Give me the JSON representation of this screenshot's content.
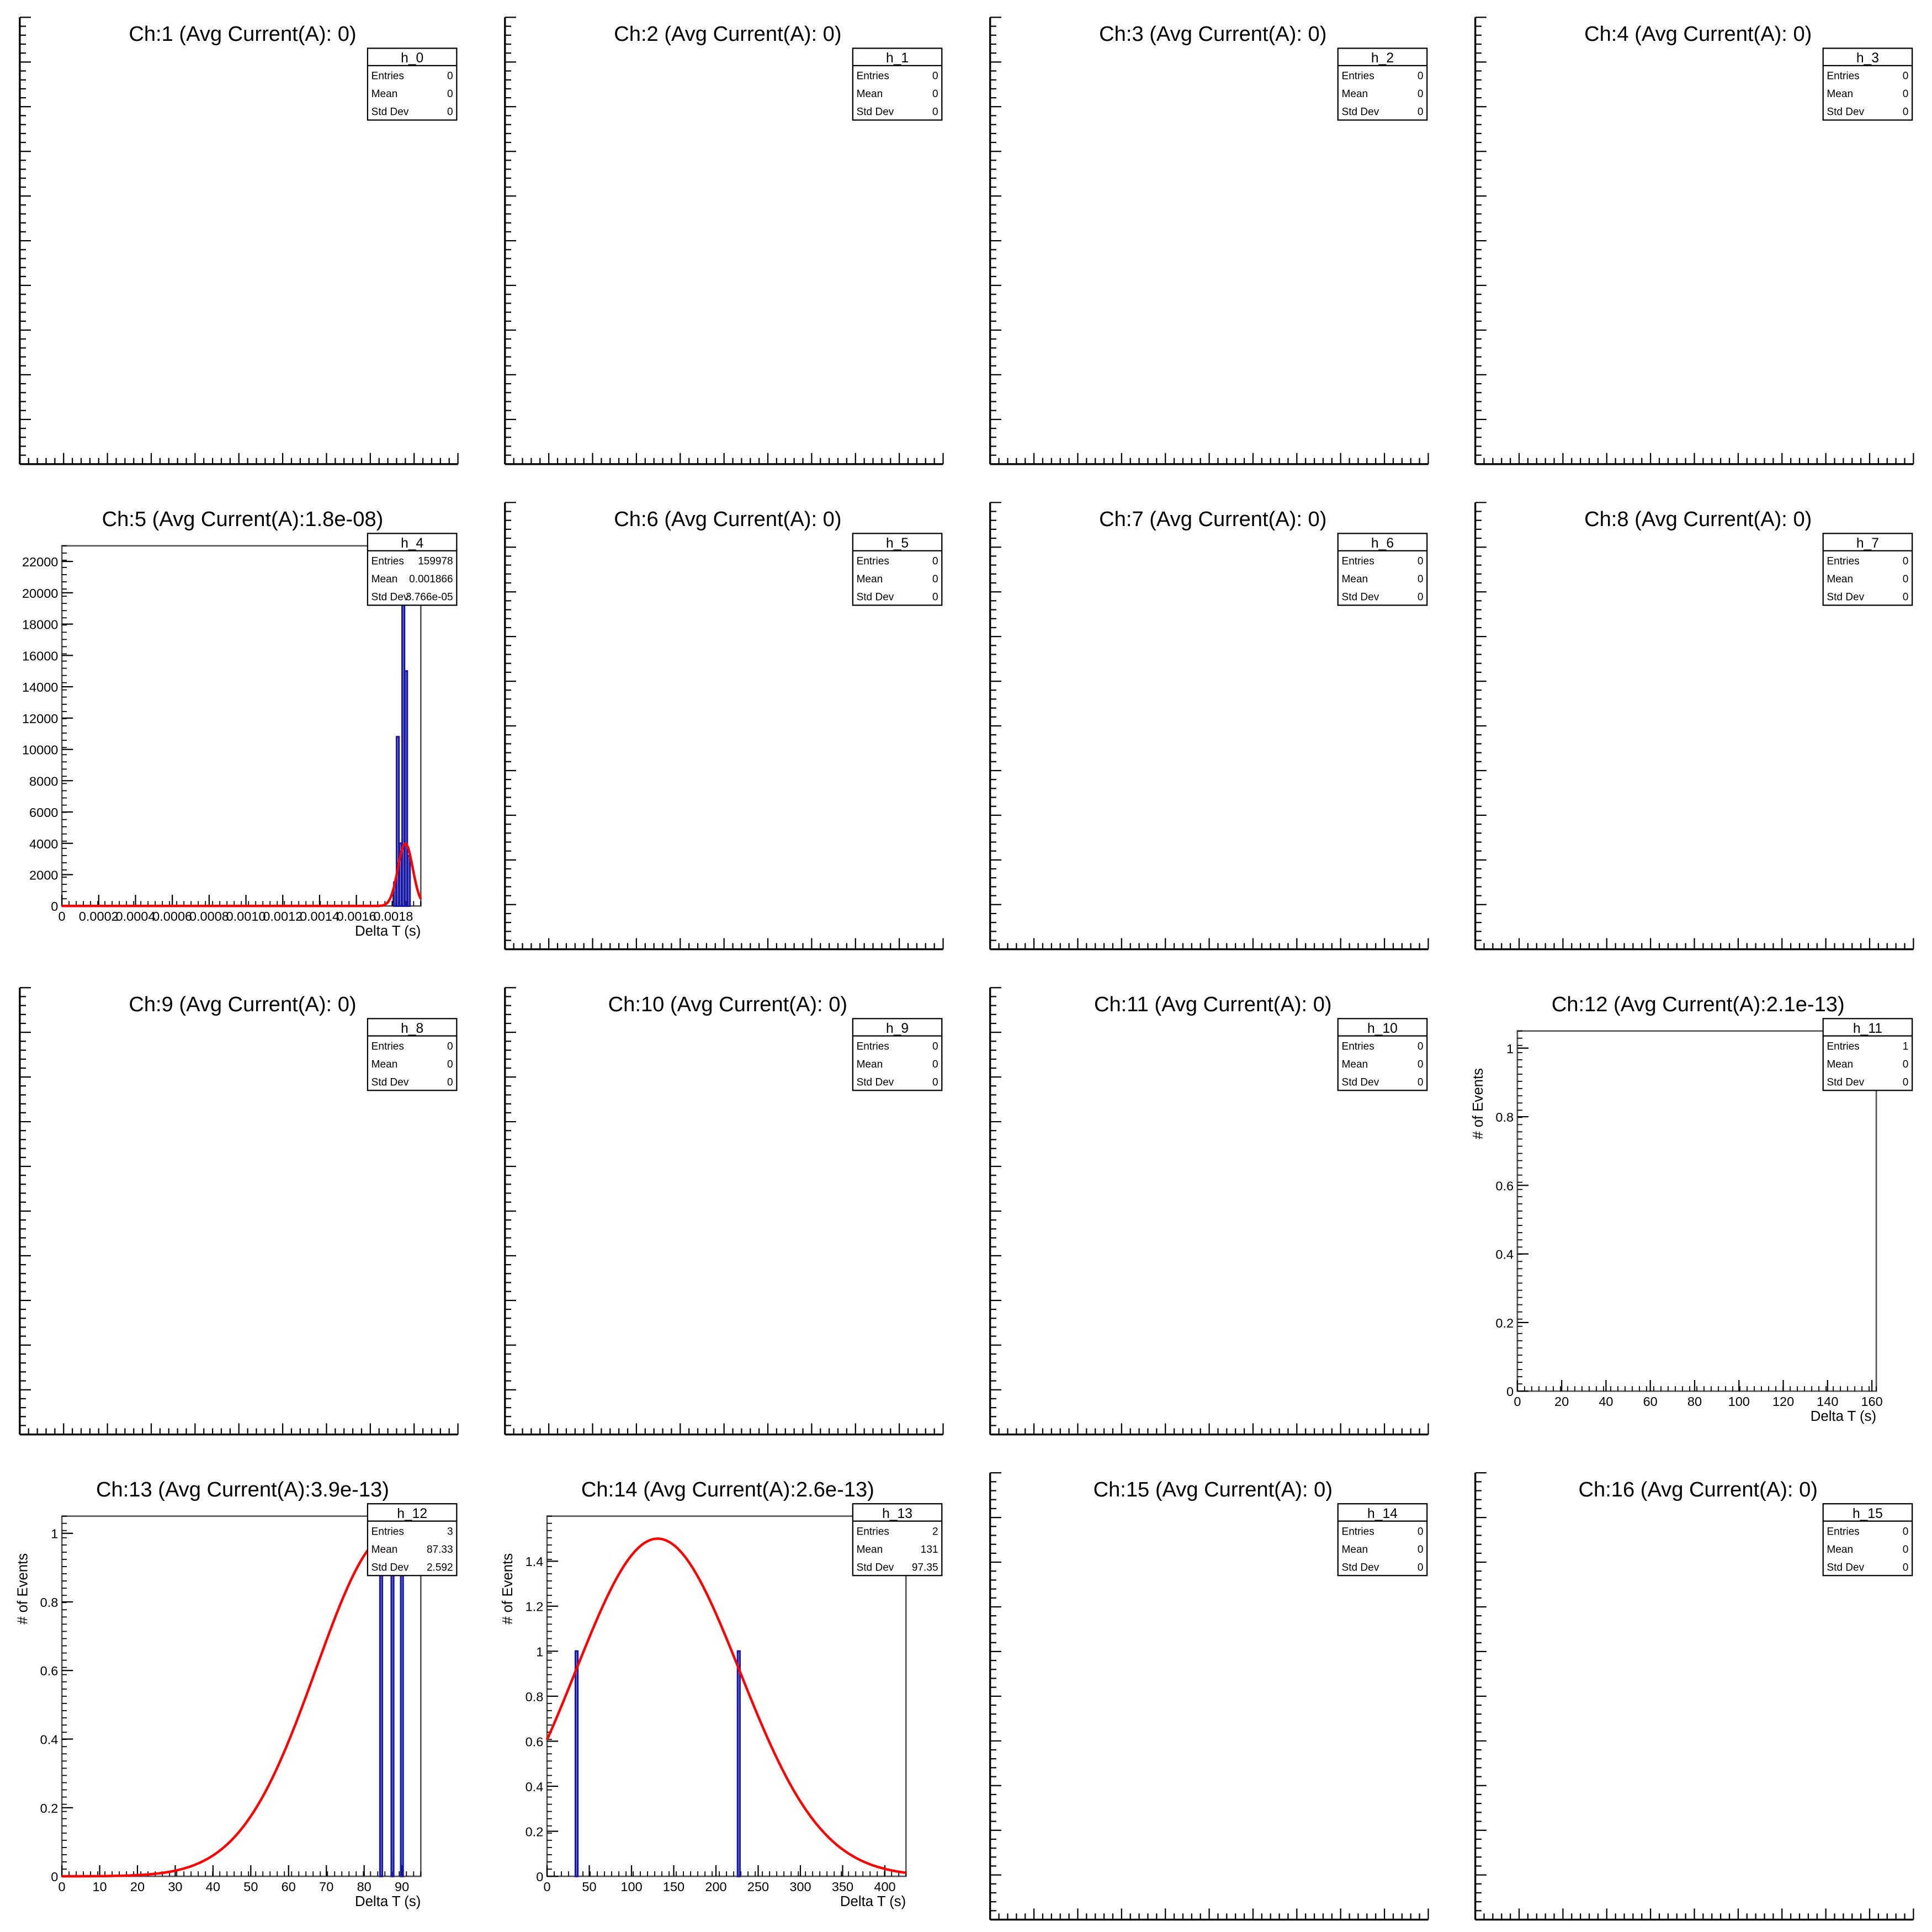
{
  "panels": [
    {
      "title": "Ch:1 (Avg Current(A): 0)",
      "stats": {
        "name": "h_0",
        "entries": "0",
        "mean": "0",
        "stddev": "0"
      }
    },
    {
      "title": "Ch:2 (Avg Current(A): 0)",
      "stats": {
        "name": "h_1",
        "entries": "0",
        "mean": "0",
        "stddev": "0"
      }
    },
    {
      "title": "Ch:3 (Avg Current(A): 0)",
      "stats": {
        "name": "h_2",
        "entries": "0",
        "mean": "0",
        "stddev": "0"
      }
    },
    {
      "title": "Ch:4 (Avg Current(A): 0)",
      "stats": {
        "name": "h_3",
        "entries": "0",
        "mean": "0",
        "stddev": "0"
      }
    },
    {
      "title": "Ch:5 (Avg Current(A):1.8e-08)",
      "stats": {
        "name": "h_4",
        "entries": "159978",
        "mean": "0.001866",
        "stddev": "3.766e-05"
      },
      "chart_data": {
        "type": "bar",
        "xlabel": "Delta T (s)",
        "ylabel": "",
        "xlim": [
          0,
          0.00195
        ],
        "ylim": [
          0,
          23000
        ],
        "xticks": [
          "0",
          "0.0002",
          "0.0004",
          "0.0006",
          "0.0008",
          "0.0010",
          "0.0012",
          "0.0014",
          "0.0016",
          "0.0018"
        ],
        "yticks": [
          "0",
          "2000",
          "4000",
          "6000",
          "8000",
          "10000",
          "12000",
          "14000",
          "16000",
          "18000",
          "20000",
          "22000"
        ],
        "bars": [
          [
            0.00181,
            1500
          ],
          [
            0.001825,
            10800
          ],
          [
            0.00184,
            4000
          ],
          [
            0.001855,
            19300
          ],
          [
            0.00187,
            15000
          ],
          [
            0.001885,
            3200
          ]
        ],
        "fit": {
          "mean": 0.001866,
          "sigma": 4e-05,
          "amplitude": 4000
        }
      }
    },
    {
      "title": "Ch:6 (Avg Current(A): 0)",
      "stats": {
        "name": "h_5",
        "entries": "0",
        "mean": "0",
        "stddev": "0"
      }
    },
    {
      "title": "Ch:7 (Avg Current(A): 0)",
      "stats": {
        "name": "h_6",
        "entries": "0",
        "mean": "0",
        "stddev": "0"
      }
    },
    {
      "title": "Ch:8 (Avg Current(A): 0)",
      "stats": {
        "name": "h_7",
        "entries": "0",
        "mean": "0",
        "stddev": "0"
      }
    },
    {
      "title": "Ch:9 (Avg Current(A): 0)",
      "stats": {
        "name": "h_8",
        "entries": "0",
        "mean": "0",
        "stddev": "0"
      }
    },
    {
      "title": "Ch:10 (Avg Current(A): 0)",
      "stats": {
        "name": "h_9",
        "entries": "0",
        "mean": "0",
        "stddev": "0"
      }
    },
    {
      "title": "Ch:11 (Avg Current(A): 0)",
      "stats": {
        "name": "h_10",
        "entries": "0",
        "mean": "0",
        "stddev": "0"
      }
    },
    {
      "title": "Ch:12 (Avg Current(A):2.1e-13)",
      "stats": {
        "name": "h_11",
        "entries": "1",
        "mean": "0",
        "stddev": "0"
      },
      "chart_data": {
        "type": "bar",
        "xlabel": "Delta T (s)",
        "ylabel": "# of Events",
        "xlim": [
          0,
          162
        ],
        "ylim": [
          0,
          1.05
        ],
        "xticks": [
          "0",
          "20",
          "40",
          "60",
          "80",
          "100",
          "120",
          "140",
          "160"
        ],
        "yticks": [
          "0",
          "0.2",
          "0.4",
          "0.6",
          "0.8",
          "1"
        ],
        "bars": []
      }
    },
    {
      "title": "Ch:13 (Avg Current(A):3.9e-13)",
      "stats": {
        "name": "h_12",
        "entries": "3",
        "mean": "87.33",
        "stddev": "2.592"
      },
      "chart_data": {
        "type": "bar",
        "xlabel": "Delta T (s)",
        "ylabel": "# of Events",
        "xlim": [
          0,
          95
        ],
        "ylim": [
          0,
          1.05
        ],
        "xticks": [
          "0",
          "10",
          "20",
          "30",
          "40",
          "50",
          "60",
          "70",
          "80",
          "90"
        ],
        "yticks": [
          "0",
          "0.2",
          "0.4",
          "0.6",
          "0.8",
          "1"
        ],
        "bars": [
          [
            84.5,
            1
          ],
          [
            87.5,
            1
          ],
          [
            90,
            1
          ]
        ],
        "fit": {
          "mean": 87.33,
          "sigma": 20,
          "amplitude": 1
        }
      }
    },
    {
      "title": "Ch:14 (Avg Current(A):2.6e-13)",
      "stats": {
        "name": "h_13",
        "entries": "2",
        "mean": "131",
        "stddev": "97.35"
      },
      "chart_data": {
        "type": "bar",
        "xlabel": "Delta T (s)",
        "ylabel": "# of Events",
        "xlim": [
          0,
          425
        ],
        "ylim": [
          0,
          1.6
        ],
        "xticks": [
          "0",
          "50",
          "100",
          "150",
          "200",
          "250",
          "300",
          "350",
          "400"
        ],
        "yticks": [
          "0",
          "0.2",
          "0.4",
          "0.6",
          "0.8",
          "1",
          "1.2",
          "1.4"
        ],
        "bars": [
          [
            35,
            1
          ],
          [
            227,
            1
          ]
        ],
        "fit": {
          "mean": 131,
          "sigma": 97.35,
          "amplitude": 1.5
        }
      }
    },
    {
      "title": "Ch:15 (Avg Current(A): 0)",
      "stats": {
        "name": "h_14",
        "entries": "0",
        "mean": "0",
        "stddev": "0"
      }
    },
    {
      "title": "Ch:16 (Avg Current(A): 0)",
      "stats": {
        "name": "h_15",
        "entries": "0",
        "mean": "0",
        "stddev": "0"
      }
    }
  ],
  "labels": {
    "entries": "Entries",
    "mean": "Mean",
    "stddev": "Std Dev"
  },
  "colors": {
    "hist": "#1a1aa8",
    "fit": "#ff0000",
    "axis": "#000000",
    "frame": "#555555"
  }
}
